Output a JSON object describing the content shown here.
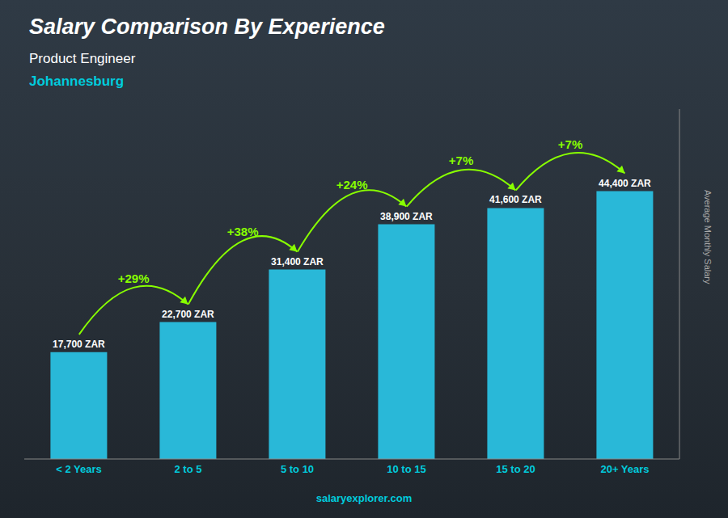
{
  "chart_data": {
    "type": "bar",
    "title": "Salary Comparison By Experience",
    "subtitle": [
      "Product Engineer",
      "Johannesburg"
    ],
    "y_label": "Average Monthly Salary",
    "categories": [
      "< 2 Years",
      "2 to 5",
      "5 to 10",
      "10 to 15",
      "15 to 20",
      "20+ Years"
    ],
    "values": [
      17700,
      22700,
      31400,
      38900,
      41600,
      44400
    ],
    "value_labels": [
      "17,700 ZAR",
      "22,700 ZAR",
      "31,400 ZAR",
      "38,900 ZAR",
      "41,600 ZAR",
      "44,400 ZAR"
    ],
    "data_labels": true,
    "annotations": [
      "+29%",
      "+38%",
      "+24%",
      "+7%",
      "+7%"
    ],
    "footer": "salaryexplorer.com",
    "color": "#29b8d8",
    "ylim": [
      0,
      58000
    ],
    "tick_labels": "x",
    "grid": false
  }
}
